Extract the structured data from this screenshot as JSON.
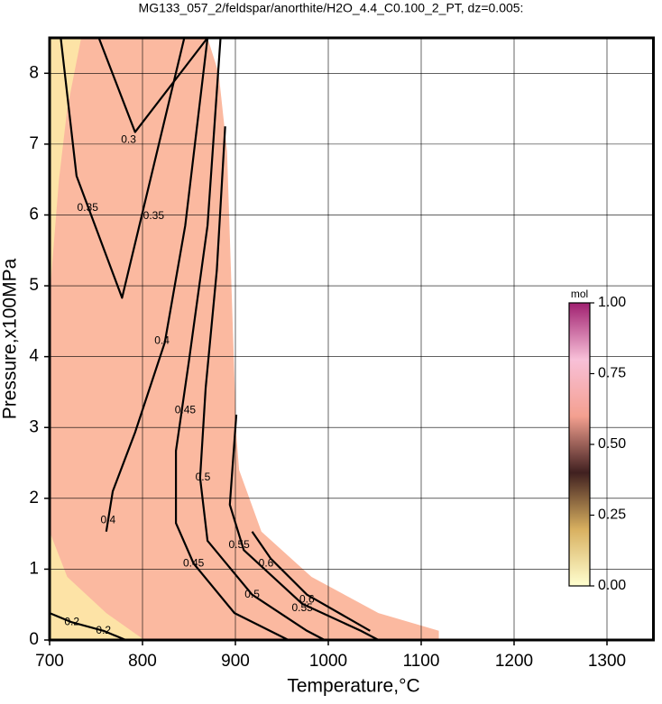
{
  "chart_data": {
    "type": "contour",
    "title": "MG133_057_2/feldspar/anorthite/H2O_4.4_C0.100_2_PT, dz=0.005:",
    "xlabel": "Temperature,°C",
    "ylabel": "Pressure,x100MPa",
    "xlim": [
      700,
      1350
    ],
    "ylim": [
      0,
      8.5
    ],
    "xticks": [
      700,
      800,
      900,
      1000,
      1100,
      1200,
      1300
    ],
    "yticks": [
      0,
      1,
      2,
      3,
      4,
      5,
      6,
      7,
      8
    ],
    "grid": true,
    "regions": [
      {
        "color": "#fbb9a0",
        "x": [
          700,
          700,
          870,
          882,
          891,
          901,
          904,
          928,
          982,
          1054,
          1119,
          1119
        ],
        "y": [
          0,
          8.5,
          8.5,
          8,
          6.9,
          2.9,
          2.4,
          1.53,
          0.89,
          0.38,
          0.13,
          0
        ]
      },
      {
        "color": "#fde3a6",
        "x": [
          700,
          700,
          719,
          761,
          802
        ],
        "y": [
          0,
          1.53,
          0.89,
          0.38,
          0
        ]
      },
      {
        "color": "#fde3a6",
        "x": [
          700,
          734,
          719,
          710,
          703,
          700
        ],
        "y": [
          8.5,
          8.5,
          7.5,
          6.49,
          5.34,
          4.83
        ]
      }
    ],
    "contours": [
      {
        "level": 0.2,
        "x": [
          700,
          724,
          758,
          782
        ],
        "y": [
          0.38,
          0.25,
          0.13,
          0
        ]
      },
      {
        "level": 0.3,
        "x": [
          753,
          792,
          870
        ],
        "y": [
          8.5,
          7.17,
          8.5
        ]
      },
      {
        "level": 0.35,
        "x": [
          712,
          729,
          778,
          845
        ],
        "y": [
          8.5,
          6.55,
          4.83,
          8.5
        ]
      },
      {
        "level": 0.4,
        "x": [
          870,
          846,
          824,
          792,
          768,
          761
        ],
        "y": [
          8.5,
          5.85,
          4.2,
          2.93,
          2.1,
          1.53
        ]
      },
      {
        "level": 0.45,
        "x": [
          884,
          870,
          850,
          836,
          836,
          855,
          899,
          957
        ],
        "y": [
          8.5,
          5.85,
          3.94,
          2.67,
          1.65,
          1.08,
          0.38,
          0
        ]
      },
      {
        "level": 0.5,
        "x": [
          889,
          880,
          868,
          862,
          870,
          918,
          977,
          996
        ],
        "y": [
          7.25,
          5.22,
          3.56,
          2.29,
          1.4,
          0.64,
          0.13,
          0
        ]
      },
      {
        "level": 0.55,
        "x": [
          901,
          894,
          909,
          972,
          1035,
          1054
        ],
        "y": [
          3.18,
          1.91,
          1.27,
          0.51,
          0.13,
          0
        ]
      },
      {
        "level": 0.6,
        "x": [
          918,
          938,
          977,
          1045
        ],
        "y": [
          1.53,
          1.15,
          0.64,
          0.13
        ]
      }
    ],
    "contour_labels": [
      {
        "level": 0.2,
        "x": 724,
        "y": 0.25
      },
      {
        "level": 0.2,
        "x": 758,
        "y": 0.13
      },
      {
        "level": 0.3,
        "x": 785,
        "y": 7.06
      },
      {
        "level": 0.35,
        "x": 741,
        "y": 6.1
      },
      {
        "level": 0.35,
        "x": 812,
        "y": 5.98
      },
      {
        "level": 0.4,
        "x": 821,
        "y": 4.22
      },
      {
        "level": 0.4,
        "x": 763,
        "y": 1.69
      },
      {
        "level": 0.45,
        "x": 846,
        "y": 3.24
      },
      {
        "level": 0.45,
        "x": 855,
        "y": 1.08
      },
      {
        "level": 0.5,
        "x": 865,
        "y": 2.29
      },
      {
        "level": 0.5,
        "x": 918,
        "y": 0.64
      },
      {
        "level": 0.55,
        "x": 904,
        "y": 1.34
      },
      {
        "level": 0.55,
        "x": 972,
        "y": 0.45
      },
      {
        "level": 0.6,
        "x": 933,
        "y": 1.08
      },
      {
        "level": 0.6,
        "x": 977,
        "y": 0.57
      }
    ],
    "colorbar": {
      "label": "mol",
      "lim": [
        0,
        1
      ],
      "colormap": [
        "#ffffd0",
        "#d8b060",
        "#402020",
        "#f4a090",
        "#f8c0d8",
        "#a02070"
      ],
      "ticks": [
        {
          "value": 0,
          "label": "0.00"
        },
        {
          "value": 0.25,
          "label": "0.25"
        },
        {
          "value": 0.5,
          "label": "0.50"
        },
        {
          "value": 0.75,
          "label": "0.75"
        },
        {
          "value": 1,
          "label": "1.00"
        }
      ]
    }
  }
}
